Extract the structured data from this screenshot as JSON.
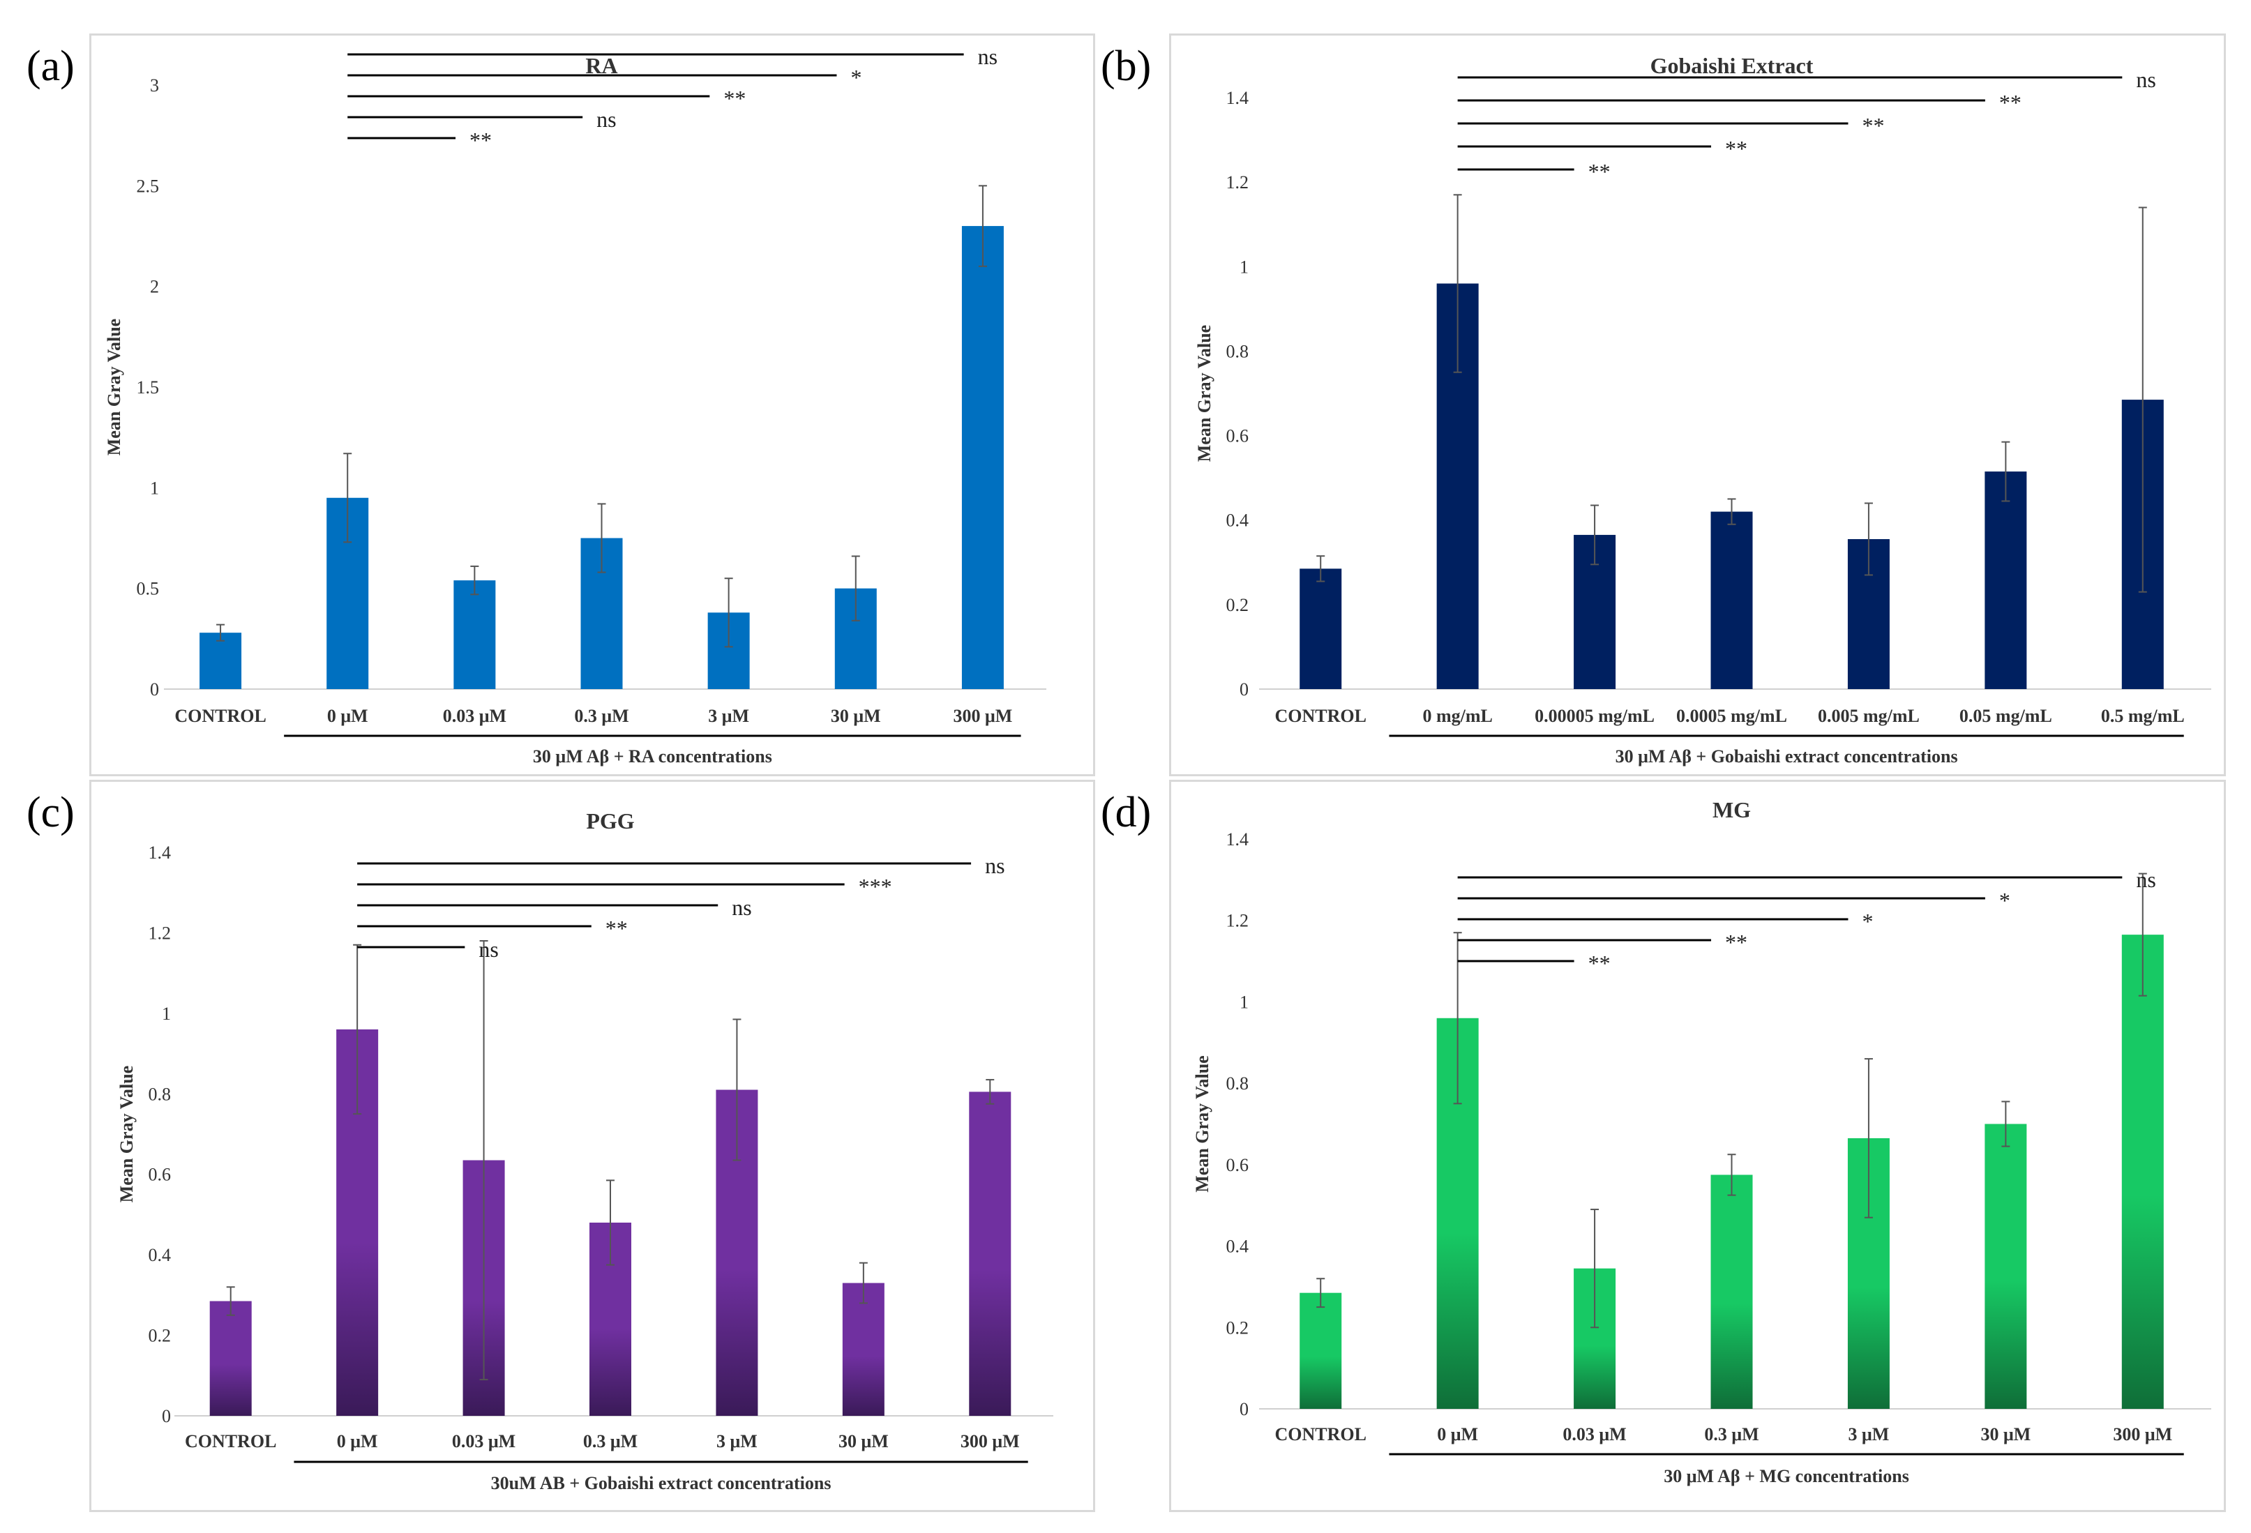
{
  "panels": [
    {
      "letter": "(a)"
    },
    {
      "letter": "(b)"
    },
    {
      "letter": "(c)"
    },
    {
      "letter": "(d)"
    }
  ],
  "chart_data": [
    {
      "type": "bar",
      "title": "RA",
      "ylabel": "Mean Gray Value",
      "xlabel": "",
      "group_label": "30 μM Aβ + RA concentrations",
      "categories": [
        "CONTROL",
        "0 μM",
        "0.03 μM",
        "0.3 μM",
        "3 μM",
        "30 μM",
        "300 μM"
      ],
      "values": [
        0.28,
        0.95,
        0.54,
        0.75,
        0.38,
        0.5,
        2.3
      ],
      "errors": [
        0.04,
        0.22,
        0.07,
        0.17,
        0.17,
        0.16,
        0.2
      ],
      "ylim": [
        0,
        3
      ],
      "yticks": [
        "0",
        "0.5",
        "1",
        "1.5",
        "2",
        "2.5",
        "3"
      ],
      "bar_color": "#0070c0",
      "gradient": false,
      "significance": [
        {
          "label": "**",
          "to": 2
        },
        {
          "label": "ns",
          "to": 3
        },
        {
          "label": "**",
          "to": 4
        },
        {
          "label": "*",
          "to": 5
        },
        {
          "label": "ns",
          "to": 6
        }
      ]
    },
    {
      "type": "bar",
      "title": "Gobaishi Extract",
      "ylabel": "Mean Gray Value",
      "xlabel": "",
      "group_label": "30 μM Aβ + Gobaishi extract concentrations",
      "categories": [
        "CONTROL",
        "0 mg/mL",
        "0.00005 mg/mL",
        "0.0005 mg/mL",
        "0.005 mg/mL",
        "0.05 mg/mL",
        "0.5 mg/mL"
      ],
      "values": [
        0.285,
        0.96,
        0.365,
        0.42,
        0.355,
        0.515,
        0.685
      ],
      "errors": [
        0.03,
        0.21,
        0.07,
        0.03,
        0.085,
        0.07,
        0.455
      ],
      "ylim": [
        0,
        1.4
      ],
      "yticks": [
        "0",
        "0.2",
        "0.4",
        "0.6",
        "0.8",
        "1",
        "1.2",
        "1.4"
      ],
      "bar_color": "#002060",
      "gradient": false,
      "significance": [
        {
          "label": "**",
          "to": 2
        },
        {
          "label": "**",
          "to": 3
        },
        {
          "label": "**",
          "to": 4
        },
        {
          "label": "**",
          "to": 5
        },
        {
          "label": "ns",
          "to": 6
        }
      ]
    },
    {
      "type": "bar",
      "title": "PGG",
      "ylabel": "Mean Gray Value",
      "xlabel": "",
      "group_label": "30uM AB + Gobaishi extract concentrations",
      "categories": [
        "CONTROL",
        "0 μM",
        "0.03 μM",
        "0.3 μM",
        "3 μM",
        "30 μM",
        "300 μM"
      ],
      "values": [
        0.285,
        0.96,
        0.635,
        0.48,
        0.81,
        0.33,
        0.805
      ],
      "errors": [
        0.035,
        0.21,
        0.545,
        0.105,
        0.175,
        0.05,
        0.03
      ],
      "ylim": [
        0,
        1.4
      ],
      "yticks": [
        "0",
        "0.2",
        "0.4",
        "0.6",
        "0.8",
        "1",
        "1.2",
        "1.4"
      ],
      "bar_color": "#7030a0",
      "bar_color_dark": "#3a1a58",
      "gradient": true,
      "significance": [
        {
          "label": "ns",
          "to": 2
        },
        {
          "label": "**",
          "to": 3
        },
        {
          "label": "ns",
          "to": 4
        },
        {
          "label": "***",
          "to": 5
        },
        {
          "label": "ns",
          "to": 6
        }
      ]
    },
    {
      "type": "bar",
      "title": "MG",
      "ylabel": "Mean Gray Value",
      "xlabel": "",
      "group_label": "30 μM Aβ + MG concentrations",
      "categories": [
        "CONTROL",
        "0 μM",
        "0.03 μM",
        "0.3 μM",
        "3 μM",
        "30 μM",
        "300 μM"
      ],
      "values": [
        0.285,
        0.96,
        0.345,
        0.575,
        0.665,
        0.7,
        1.165
      ],
      "errors": [
        0.035,
        0.21,
        0.145,
        0.05,
        0.195,
        0.055,
        0.15
      ],
      "ylim": [
        0,
        1.4
      ],
      "yticks": [
        "0",
        "0.2",
        "0.4",
        "0.6",
        "0.8",
        "1",
        "1.2",
        "1.4"
      ],
      "bar_color": "#17c964",
      "bar_color_dark": "#0f6e38",
      "gradient": true,
      "significance": [
        {
          "label": "**",
          "to": 2
        },
        {
          "label": "**",
          "to": 3
        },
        {
          "label": "*",
          "to": 4
        },
        {
          "label": "*",
          "to": 5
        },
        {
          "label": "ns",
          "to": 6
        }
      ]
    }
  ]
}
